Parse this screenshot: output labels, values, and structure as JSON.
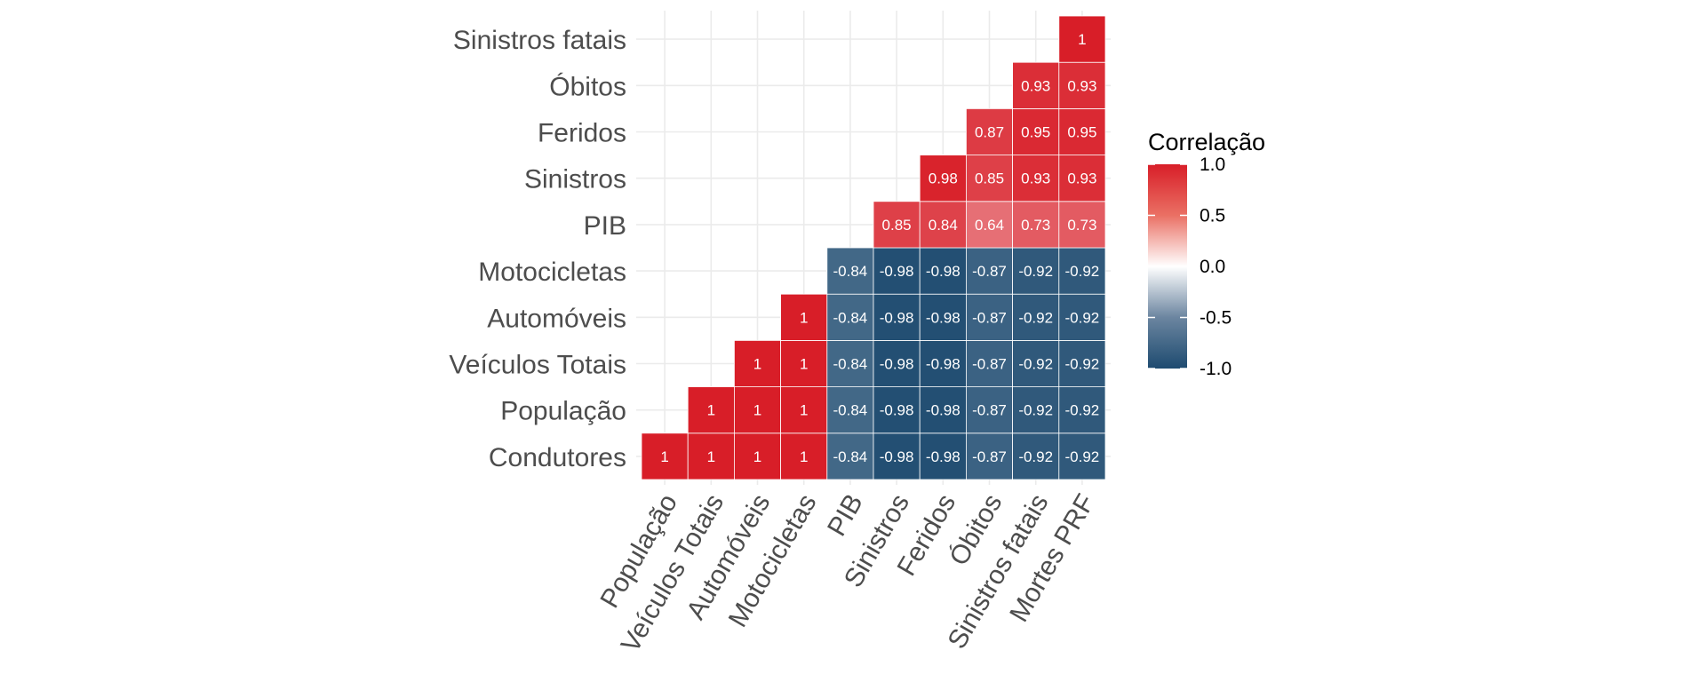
{
  "chart_data": {
    "type": "heatmap",
    "title": "",
    "xlabel": "",
    "ylabel": "",
    "x_categories": [
      "População",
      "Veículos Totais",
      "Automóveis",
      "Motocicletas",
      "PIB",
      "Sinistros",
      "Feridos",
      "Óbitos",
      "Sinistros fatais",
      "Mortes PRF"
    ],
    "y_categories": [
      "Condutores",
      "População",
      "Veículos Totais",
      "Automóveis",
      "Motocicletas",
      "PIB",
      "Sinistros",
      "Feridos",
      "Óbitos",
      "Sinistros fatais"
    ],
    "values": [
      [
        1,
        1,
        1,
        1,
        -0.84,
        -0.98,
        -0.98,
        -0.87,
        -0.92,
        -0.92
      ],
      [
        null,
        1,
        1,
        1,
        -0.84,
        -0.98,
        -0.98,
        -0.87,
        -0.92,
        -0.92
      ],
      [
        null,
        null,
        1,
        1,
        -0.84,
        -0.98,
        -0.98,
        -0.87,
        -0.92,
        -0.92
      ],
      [
        null,
        null,
        null,
        1,
        -0.84,
        -0.98,
        -0.98,
        -0.87,
        -0.92,
        -0.92
      ],
      [
        null,
        null,
        null,
        null,
        -0.84,
        -0.98,
        -0.98,
        -0.87,
        -0.92,
        -0.92
      ],
      [
        null,
        null,
        null,
        null,
        null,
        0.85,
        0.84,
        0.64,
        0.73,
        0.73
      ],
      [
        null,
        null,
        null,
        null,
        null,
        null,
        0.98,
        0.85,
        0.93,
        0.93
      ],
      [
        null,
        null,
        null,
        null,
        null,
        null,
        null,
        0.87,
        0.95,
        0.95
      ],
      [
        null,
        null,
        null,
        null,
        null,
        null,
        null,
        null,
        0.93,
        0.93
      ],
      [
        null,
        null,
        null,
        null,
        null,
        null,
        null,
        null,
        null,
        1
      ]
    ],
    "color_scale": {
      "low": "#1e4b70",
      "mid": "#ffffff",
      "high": "#d81e28",
      "limits": [
        -1,
        1
      ]
    },
    "legend": {
      "title": "Correlação",
      "ticks": [
        1.0,
        0.5,
        0.0,
        -0.5,
        -1.0
      ],
      "tick_labels": [
        "1.0",
        "0.5",
        "0.0",
        "-0.5",
        "-1.0"
      ],
      "placement": "right"
    },
    "grid": true
  }
}
